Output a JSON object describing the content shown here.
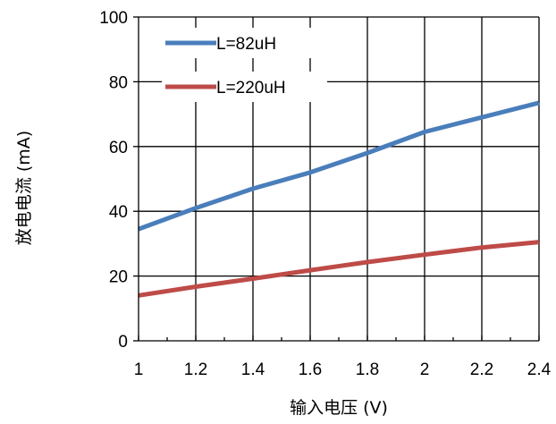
{
  "chart_data": {
    "type": "line",
    "title": "",
    "xlabel": "输入电压 (V)",
    "ylabel": "放电电流 (mA)",
    "xlim": [
      1,
      2.4
    ],
    "ylim": [
      0,
      100
    ],
    "xticks": [
      1,
      1.2,
      1.4,
      1.6,
      1.8,
      2,
      2.2,
      2.4
    ],
    "xtick_labels": [
      "1",
      "1.2",
      "1.4",
      "1.6",
      "1.8",
      "2",
      "2.2",
      "2.4"
    ],
    "yticks": [
      0,
      20,
      40,
      60,
      80,
      100
    ],
    "ytick_labels": [
      "0",
      "20",
      "40",
      "60",
      "80",
      "100"
    ],
    "grid": true,
    "legend_position": "top-left",
    "series": [
      {
        "name": "L=82uH",
        "color": "#4a7ebb",
        "x": [
          1,
          1.2,
          1.4,
          1.6,
          1.8,
          2,
          2.2,
          2.4
        ],
        "y": [
          34.5,
          41,
          47,
          52,
          58,
          64.5,
          69,
          73.5
        ]
      },
      {
        "name": "L=220uH",
        "color": "#be4b48",
        "x": [
          1,
          1.2,
          1.4,
          1.6,
          1.8,
          2,
          2.2,
          2.4
        ],
        "y": [
          14,
          16.7,
          19.2,
          21.8,
          24.3,
          26.6,
          28.8,
          30.5
        ]
      }
    ]
  }
}
